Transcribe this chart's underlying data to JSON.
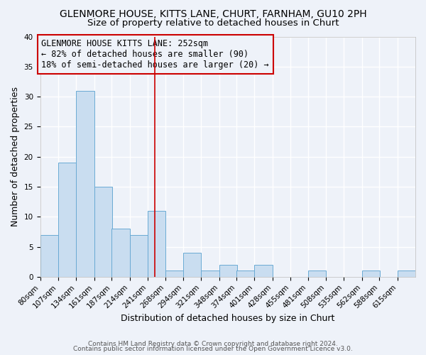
{
  "title": "GLENMORE HOUSE, KITTS LANE, CHURT, FARNHAM, GU10 2PH",
  "subtitle": "Size of property relative to detached houses in Churt",
  "xlabel": "Distribution of detached houses by size in Churt",
  "ylabel": "Number of detached properties",
  "bin_labels": [
    "80sqm",
    "107sqm",
    "134sqm",
    "161sqm",
    "187sqm",
    "214sqm",
    "241sqm",
    "268sqm",
    "294sqm",
    "321sqm",
    "348sqm",
    "374sqm",
    "401sqm",
    "428sqm",
    "455sqm",
    "481sqm",
    "508sqm",
    "535sqm",
    "562sqm",
    "588sqm",
    "615sqm"
  ],
  "bin_edges": [
    80,
    107,
    134,
    161,
    187,
    214,
    241,
    268,
    294,
    321,
    348,
    374,
    401,
    428,
    455,
    481,
    508,
    535,
    562,
    588,
    615
  ],
  "counts": [
    7,
    19,
    31,
    15,
    8,
    7,
    11,
    1,
    4,
    1,
    2,
    1,
    2,
    0,
    0,
    1,
    0,
    0,
    1,
    0,
    1
  ],
  "bar_color": "#c9ddf0",
  "bar_edge_color": "#6aaad4",
  "vline_x": 252,
  "vline_color": "#cc0000",
  "annotation_title": "GLENMORE HOUSE KITTS LANE: 252sqm",
  "annotation_line2": "← 82% of detached houses are smaller (90)",
  "annotation_line3": "18% of semi-detached houses are larger (20) →",
  "annotation_box_color": "#cc0000",
  "ylim": [
    0,
    40
  ],
  "yticks": [
    0,
    5,
    10,
    15,
    20,
    25,
    30,
    35,
    40
  ],
  "footer1": "Contains HM Land Registry data © Crown copyright and database right 2024.",
  "footer2": "Contains public sector information licensed under the Open Government Licence v3.0.",
  "bg_color": "#eef2f9",
  "grid_color": "#ffffff",
  "title_fontsize": 10,
  "subtitle_fontsize": 9.5,
  "axis_label_fontsize": 9,
  "tick_fontsize": 7.5,
  "footer_fontsize": 6.5,
  "annot_fontsize": 8.5
}
